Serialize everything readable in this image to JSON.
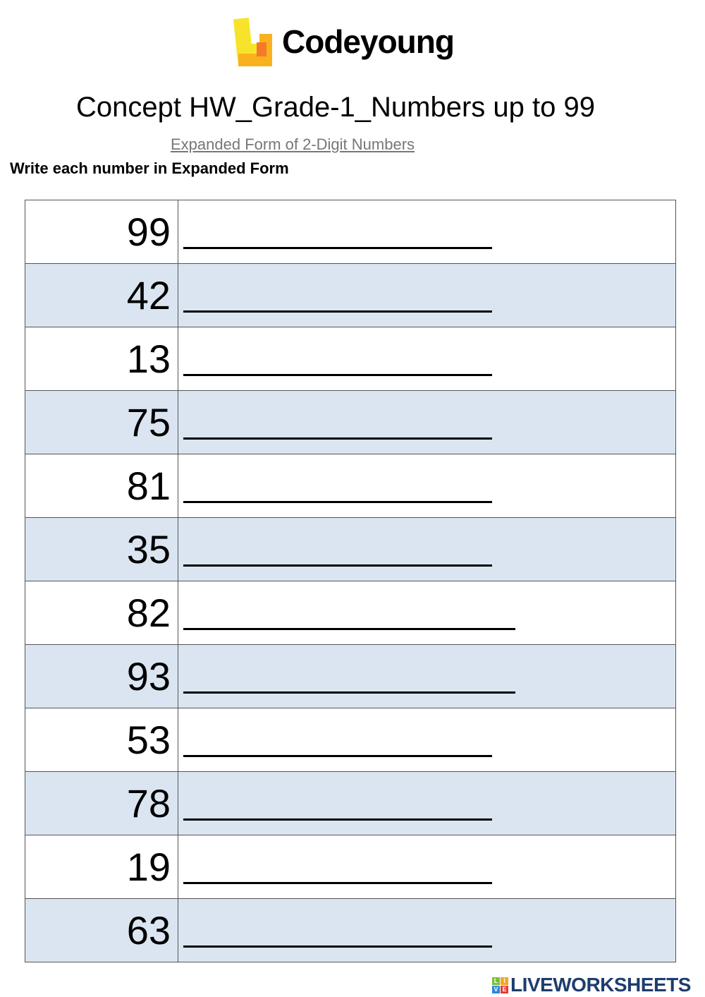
{
  "logo": {
    "text": "Codeyoung"
  },
  "title": "Concept HW_Grade-1_Numbers up to 99",
  "subtitle": "Expanded Form of 2-Digit Numbers",
  "instruction": "Write each number in Expanded Form",
  "rows": [
    {
      "number": "99",
      "answer": ""
    },
    {
      "number": "42",
      "answer": ""
    },
    {
      "number": "13",
      "answer": ""
    },
    {
      "number": "75",
      "answer": ""
    },
    {
      "number": "81",
      "answer": ""
    },
    {
      "number": "35",
      "answer": ""
    },
    {
      "number": "82",
      "answer": ""
    },
    {
      "number": "93",
      "answer": ""
    },
    {
      "number": "53",
      "answer": ""
    },
    {
      "number": "78",
      "answer": ""
    },
    {
      "number": "19",
      "answer": ""
    },
    {
      "number": "63",
      "answer": ""
    }
  ],
  "footer": {
    "brand": "LIVEWORKSHEETS",
    "badge_letters": [
      "L",
      "I",
      "V",
      "E"
    ]
  },
  "colors": {
    "row_alt": "#dbe5f1",
    "brand_blue": "#1d3d6e",
    "logo_yellow": "#f7e42a",
    "logo_orange": "#f9b21d"
  }
}
